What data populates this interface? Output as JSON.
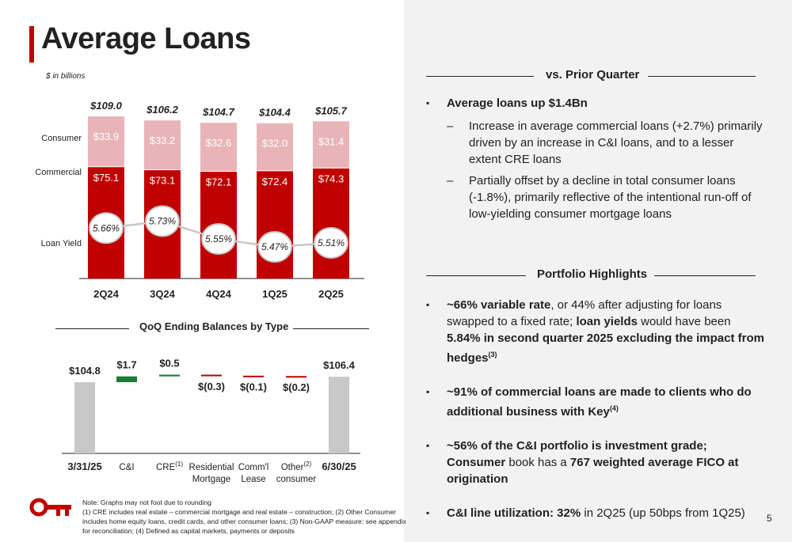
{
  "title": "Average Loans",
  "subtitle": "$ in billions",
  "page_number": "5",
  "colors": {
    "commercial": "#c00000",
    "consumer": "#e8b4b8",
    "increase": "#1e7b34",
    "decrease": "#c00000",
    "endpoint": "#c8c8c8",
    "accent": "#c00000"
  },
  "chart_data": [
    {
      "type": "bar",
      "stacked": true,
      "categories": [
        "2Q24",
        "3Q24",
        "4Q24",
        "1Q25",
        "2Q25"
      ],
      "series": [
        {
          "name": "Commercial",
          "values": [
            75.1,
            73.1,
            72.1,
            72.4,
            74.3
          ],
          "labels": [
            "$75.1",
            "$73.1",
            "$72.1",
            "$72.4",
            "$74.3"
          ]
        },
        {
          "name": "Consumer",
          "values": [
            33.9,
            33.2,
            32.6,
            32.0,
            31.4
          ],
          "labels": [
            "$33.9",
            "$33.2",
            "$32.6",
            "$32.0",
            "$31.4"
          ]
        }
      ],
      "totals": [
        "$109.0",
        "$106.2",
        "$104.7",
        "$104.4",
        "$105.7"
      ],
      "total_values": [
        109.0,
        106.2,
        104.7,
        104.4,
        105.7
      ],
      "loan_yield": {
        "name": "Loan Yield",
        "values": [
          5.66,
          5.73,
          5.55,
          5.47,
          5.51
        ],
        "labels": [
          "5.66%",
          "5.73%",
          "5.55%",
          "5.47%",
          "5.51%"
        ]
      }
    },
    {
      "type": "bar",
      "waterfall": true,
      "title": "QoQ Ending Balances by Type",
      "categories": [
        "3/31/25",
        "C&I",
        "CRE",
        "Residential Mortgage",
        "Comm'l Lease",
        "Other consumer",
        "6/30/25"
      ],
      "category_lines": [
        [
          "3/31/25"
        ],
        [
          "C&I"
        ],
        [
          "CRE"
        ],
        [
          "Residential",
          "Mortgage"
        ],
        [
          "Comm'l",
          "Lease"
        ],
        [
          "Other",
          "consumer"
        ],
        [
          "6/30/25"
        ]
      ],
      "category_sup": [
        "",
        "",
        "(1)",
        "",
        "",
        "(2)",
        ""
      ],
      "category_bold": [
        true,
        false,
        false,
        false,
        false,
        false,
        true
      ],
      "values": [
        104.8,
        1.7,
        0.5,
        -0.3,
        -0.1,
        -0.2,
        106.4
      ],
      "labels": [
        "$104.8",
        "$1.7",
        "$0.5",
        "$(0.3)",
        "$(0.1)",
        "$(0.2)",
        "$106.4"
      ]
    }
  ],
  "vs_prior": {
    "heading": "vs. Prior Quarter",
    "bullet": "Average loans up $1.4Bn",
    "subs": [
      "Increase in average commercial loans (+2.7%) primarily driven by an increase in C&I loans, and to a lesser extent CRE loans",
      "Partially offset by a decline in total consumer loans (-1.8%), primarily reflective of the intentional run-off of low-yielding consumer mortgage loans"
    ]
  },
  "portfolio": {
    "heading": "Portfolio Highlights",
    "b1": {
      "bold1": "~66% variable rate",
      "text1": ", or 44% after adjusting for loans swapped to a fixed rate; ",
      "bold2": "loan yields",
      "text2": " would have been ",
      "bold3": "5.84% in second quarter 2025 excluding the impact from hedges",
      "sup": "(3)"
    },
    "b2": {
      "bold": "~91% of commercial loans are made to clients who do additional business with Key",
      "sup": "(4)"
    },
    "b3": {
      "bold1": "~56% of the C&I portfolio is investment grade; Consumer",
      "text1": " book has a ",
      "bold2": "767 weighted average FICO at origination"
    },
    "b4": {
      "bold": "C&I line utilization: 32%",
      "text": " in 2Q25 (up 50bps from 1Q25)"
    }
  },
  "note": {
    "line1": "Note: Graphs may not foot due to rounding",
    "line2": "(1) CRE includes real estate – commercial mortgage and real estate – construction; (2) Other Consumer includes home equity loans, credit cards, and other consumer loans; (3) Non-GAAP measure: see appendix for reconciliation; (4) Defined as capital markets, payments or deposits"
  }
}
